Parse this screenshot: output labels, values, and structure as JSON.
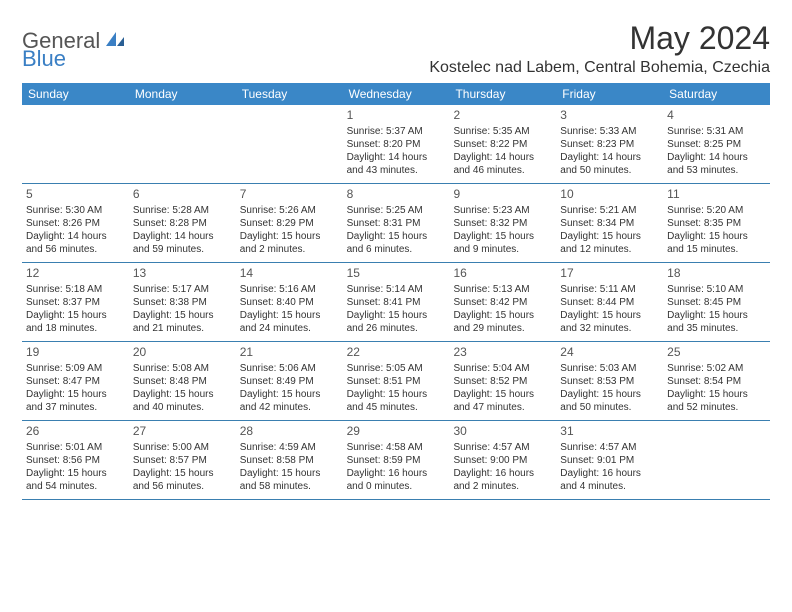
{
  "logo": {
    "part1": "General",
    "part2": "Blue"
  },
  "title": "May 2024",
  "location": "Kostelec nad Labem, Central Bohemia, Czechia",
  "colors": {
    "header_bg": "#3a87c7",
    "header_text": "#ffffff",
    "border": "#3a7fb0",
    "logo_gray": "#555555",
    "logo_blue": "#3a7fc4",
    "text": "#333333"
  },
  "dayNames": [
    "Sunday",
    "Monday",
    "Tuesday",
    "Wednesday",
    "Thursday",
    "Friday",
    "Saturday"
  ],
  "weeks": [
    [
      {
        "num": "",
        "sunrise": "",
        "sunset": "",
        "daylight1": "",
        "daylight2": ""
      },
      {
        "num": "",
        "sunrise": "",
        "sunset": "",
        "daylight1": "",
        "daylight2": ""
      },
      {
        "num": "",
        "sunrise": "",
        "sunset": "",
        "daylight1": "",
        "daylight2": ""
      },
      {
        "num": "1",
        "sunrise": "Sunrise: 5:37 AM",
        "sunset": "Sunset: 8:20 PM",
        "daylight1": "Daylight: 14 hours",
        "daylight2": "and 43 minutes."
      },
      {
        "num": "2",
        "sunrise": "Sunrise: 5:35 AM",
        "sunset": "Sunset: 8:22 PM",
        "daylight1": "Daylight: 14 hours",
        "daylight2": "and 46 minutes."
      },
      {
        "num": "3",
        "sunrise": "Sunrise: 5:33 AM",
        "sunset": "Sunset: 8:23 PM",
        "daylight1": "Daylight: 14 hours",
        "daylight2": "and 50 minutes."
      },
      {
        "num": "4",
        "sunrise": "Sunrise: 5:31 AM",
        "sunset": "Sunset: 8:25 PM",
        "daylight1": "Daylight: 14 hours",
        "daylight2": "and 53 minutes."
      }
    ],
    [
      {
        "num": "5",
        "sunrise": "Sunrise: 5:30 AM",
        "sunset": "Sunset: 8:26 PM",
        "daylight1": "Daylight: 14 hours",
        "daylight2": "and 56 minutes."
      },
      {
        "num": "6",
        "sunrise": "Sunrise: 5:28 AM",
        "sunset": "Sunset: 8:28 PM",
        "daylight1": "Daylight: 14 hours",
        "daylight2": "and 59 minutes."
      },
      {
        "num": "7",
        "sunrise": "Sunrise: 5:26 AM",
        "sunset": "Sunset: 8:29 PM",
        "daylight1": "Daylight: 15 hours",
        "daylight2": "and 2 minutes."
      },
      {
        "num": "8",
        "sunrise": "Sunrise: 5:25 AM",
        "sunset": "Sunset: 8:31 PM",
        "daylight1": "Daylight: 15 hours",
        "daylight2": "and 6 minutes."
      },
      {
        "num": "9",
        "sunrise": "Sunrise: 5:23 AM",
        "sunset": "Sunset: 8:32 PM",
        "daylight1": "Daylight: 15 hours",
        "daylight2": "and 9 minutes."
      },
      {
        "num": "10",
        "sunrise": "Sunrise: 5:21 AM",
        "sunset": "Sunset: 8:34 PM",
        "daylight1": "Daylight: 15 hours",
        "daylight2": "and 12 minutes."
      },
      {
        "num": "11",
        "sunrise": "Sunrise: 5:20 AM",
        "sunset": "Sunset: 8:35 PM",
        "daylight1": "Daylight: 15 hours",
        "daylight2": "and 15 minutes."
      }
    ],
    [
      {
        "num": "12",
        "sunrise": "Sunrise: 5:18 AM",
        "sunset": "Sunset: 8:37 PM",
        "daylight1": "Daylight: 15 hours",
        "daylight2": "and 18 minutes."
      },
      {
        "num": "13",
        "sunrise": "Sunrise: 5:17 AM",
        "sunset": "Sunset: 8:38 PM",
        "daylight1": "Daylight: 15 hours",
        "daylight2": "and 21 minutes."
      },
      {
        "num": "14",
        "sunrise": "Sunrise: 5:16 AM",
        "sunset": "Sunset: 8:40 PM",
        "daylight1": "Daylight: 15 hours",
        "daylight2": "and 24 minutes."
      },
      {
        "num": "15",
        "sunrise": "Sunrise: 5:14 AM",
        "sunset": "Sunset: 8:41 PM",
        "daylight1": "Daylight: 15 hours",
        "daylight2": "and 26 minutes."
      },
      {
        "num": "16",
        "sunrise": "Sunrise: 5:13 AM",
        "sunset": "Sunset: 8:42 PM",
        "daylight1": "Daylight: 15 hours",
        "daylight2": "and 29 minutes."
      },
      {
        "num": "17",
        "sunrise": "Sunrise: 5:11 AM",
        "sunset": "Sunset: 8:44 PM",
        "daylight1": "Daylight: 15 hours",
        "daylight2": "and 32 minutes."
      },
      {
        "num": "18",
        "sunrise": "Sunrise: 5:10 AM",
        "sunset": "Sunset: 8:45 PM",
        "daylight1": "Daylight: 15 hours",
        "daylight2": "and 35 minutes."
      }
    ],
    [
      {
        "num": "19",
        "sunrise": "Sunrise: 5:09 AM",
        "sunset": "Sunset: 8:47 PM",
        "daylight1": "Daylight: 15 hours",
        "daylight2": "and 37 minutes."
      },
      {
        "num": "20",
        "sunrise": "Sunrise: 5:08 AM",
        "sunset": "Sunset: 8:48 PM",
        "daylight1": "Daylight: 15 hours",
        "daylight2": "and 40 minutes."
      },
      {
        "num": "21",
        "sunrise": "Sunrise: 5:06 AM",
        "sunset": "Sunset: 8:49 PM",
        "daylight1": "Daylight: 15 hours",
        "daylight2": "and 42 minutes."
      },
      {
        "num": "22",
        "sunrise": "Sunrise: 5:05 AM",
        "sunset": "Sunset: 8:51 PM",
        "daylight1": "Daylight: 15 hours",
        "daylight2": "and 45 minutes."
      },
      {
        "num": "23",
        "sunrise": "Sunrise: 5:04 AM",
        "sunset": "Sunset: 8:52 PM",
        "daylight1": "Daylight: 15 hours",
        "daylight2": "and 47 minutes."
      },
      {
        "num": "24",
        "sunrise": "Sunrise: 5:03 AM",
        "sunset": "Sunset: 8:53 PM",
        "daylight1": "Daylight: 15 hours",
        "daylight2": "and 50 minutes."
      },
      {
        "num": "25",
        "sunrise": "Sunrise: 5:02 AM",
        "sunset": "Sunset: 8:54 PM",
        "daylight1": "Daylight: 15 hours",
        "daylight2": "and 52 minutes."
      }
    ],
    [
      {
        "num": "26",
        "sunrise": "Sunrise: 5:01 AM",
        "sunset": "Sunset: 8:56 PM",
        "daylight1": "Daylight: 15 hours",
        "daylight2": "and 54 minutes."
      },
      {
        "num": "27",
        "sunrise": "Sunrise: 5:00 AM",
        "sunset": "Sunset: 8:57 PM",
        "daylight1": "Daylight: 15 hours",
        "daylight2": "and 56 minutes."
      },
      {
        "num": "28",
        "sunrise": "Sunrise: 4:59 AM",
        "sunset": "Sunset: 8:58 PM",
        "daylight1": "Daylight: 15 hours",
        "daylight2": "and 58 minutes."
      },
      {
        "num": "29",
        "sunrise": "Sunrise: 4:58 AM",
        "sunset": "Sunset: 8:59 PM",
        "daylight1": "Daylight: 16 hours",
        "daylight2": "and 0 minutes."
      },
      {
        "num": "30",
        "sunrise": "Sunrise: 4:57 AM",
        "sunset": "Sunset: 9:00 PM",
        "daylight1": "Daylight: 16 hours",
        "daylight2": "and 2 minutes."
      },
      {
        "num": "31",
        "sunrise": "Sunrise: 4:57 AM",
        "sunset": "Sunset: 9:01 PM",
        "daylight1": "Daylight: 16 hours",
        "daylight2": "and 4 minutes."
      },
      {
        "num": "",
        "sunrise": "",
        "sunset": "",
        "daylight1": "",
        "daylight2": ""
      }
    ]
  ]
}
